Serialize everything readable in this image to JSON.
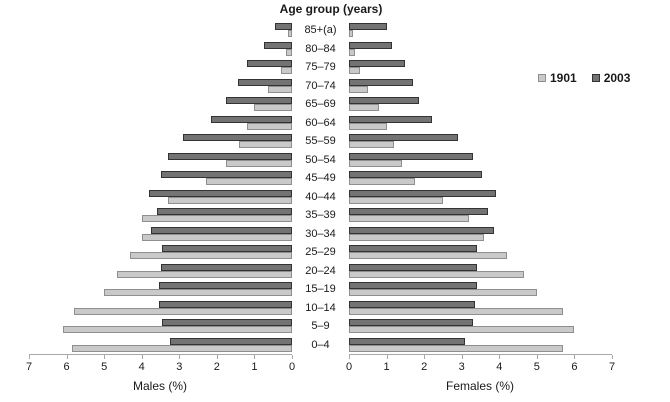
{
  "title": "Age group (years)",
  "legend": {
    "items": [
      {
        "label": "1901",
        "color": "#c9c9c9",
        "border": "#8f8f8f"
      },
      {
        "label": "2003",
        "color": "#737373",
        "border": "#333333"
      }
    ]
  },
  "axes": {
    "male_label": "Males (%)",
    "female_label": "Females (%)",
    "male_ticks": [
      "7",
      "6",
      "5",
      "4",
      "3",
      "2",
      "1",
      "0"
    ],
    "female_ticks": [
      "0",
      "1",
      "2",
      "3",
      "4",
      "5",
      "6",
      "7"
    ],
    "max": 7
  },
  "chart_data": {
    "type": "bar",
    "subtype": "population-pyramid",
    "title": "Age group (years)",
    "xlabel_left": "Males (%)",
    "xlabel_right": "Females (%)",
    "xlim": [
      0,
      7
    ],
    "grid": false,
    "legend_position": "right",
    "categories": [
      "85+(a)",
      "80–84",
      "75–79",
      "70–74",
      "65–69",
      "60–64",
      "55–59",
      "50–54",
      "45–49",
      "40–44",
      "35–39",
      "30–34",
      "25–29",
      "20–24",
      "15–19",
      "10–14",
      "5–9",
      "0–4"
    ],
    "series": [
      {
        "name": "1901",
        "males": [
          0.1,
          0.15,
          0.3,
          0.65,
          1.0,
          1.2,
          1.4,
          1.75,
          2.3,
          3.3,
          4.0,
          4.0,
          4.3,
          4.65,
          5.0,
          5.8,
          6.1,
          5.85
        ],
        "females": [
          0.1,
          0.15,
          0.3,
          0.5,
          0.8,
          1.0,
          1.2,
          1.4,
          1.75,
          2.5,
          3.2,
          3.6,
          4.2,
          4.65,
          5.0,
          5.7,
          6.0,
          5.7
        ]
      },
      {
        "name": "2003",
        "males": [
          0.45,
          0.75,
          1.2,
          1.45,
          1.75,
          2.15,
          2.9,
          3.3,
          3.5,
          3.8,
          3.6,
          3.75,
          3.45,
          3.5,
          3.55,
          3.55,
          3.45,
          3.25
        ],
        "females": [
          1.0,
          1.15,
          1.5,
          1.7,
          1.85,
          2.2,
          2.9,
          3.3,
          3.55,
          3.9,
          3.7,
          3.85,
          3.4,
          3.4,
          3.4,
          3.35,
          3.3,
          3.1
        ]
      }
    ],
    "bar_order_per_category": [
      "2003",
      "1901"
    ]
  }
}
